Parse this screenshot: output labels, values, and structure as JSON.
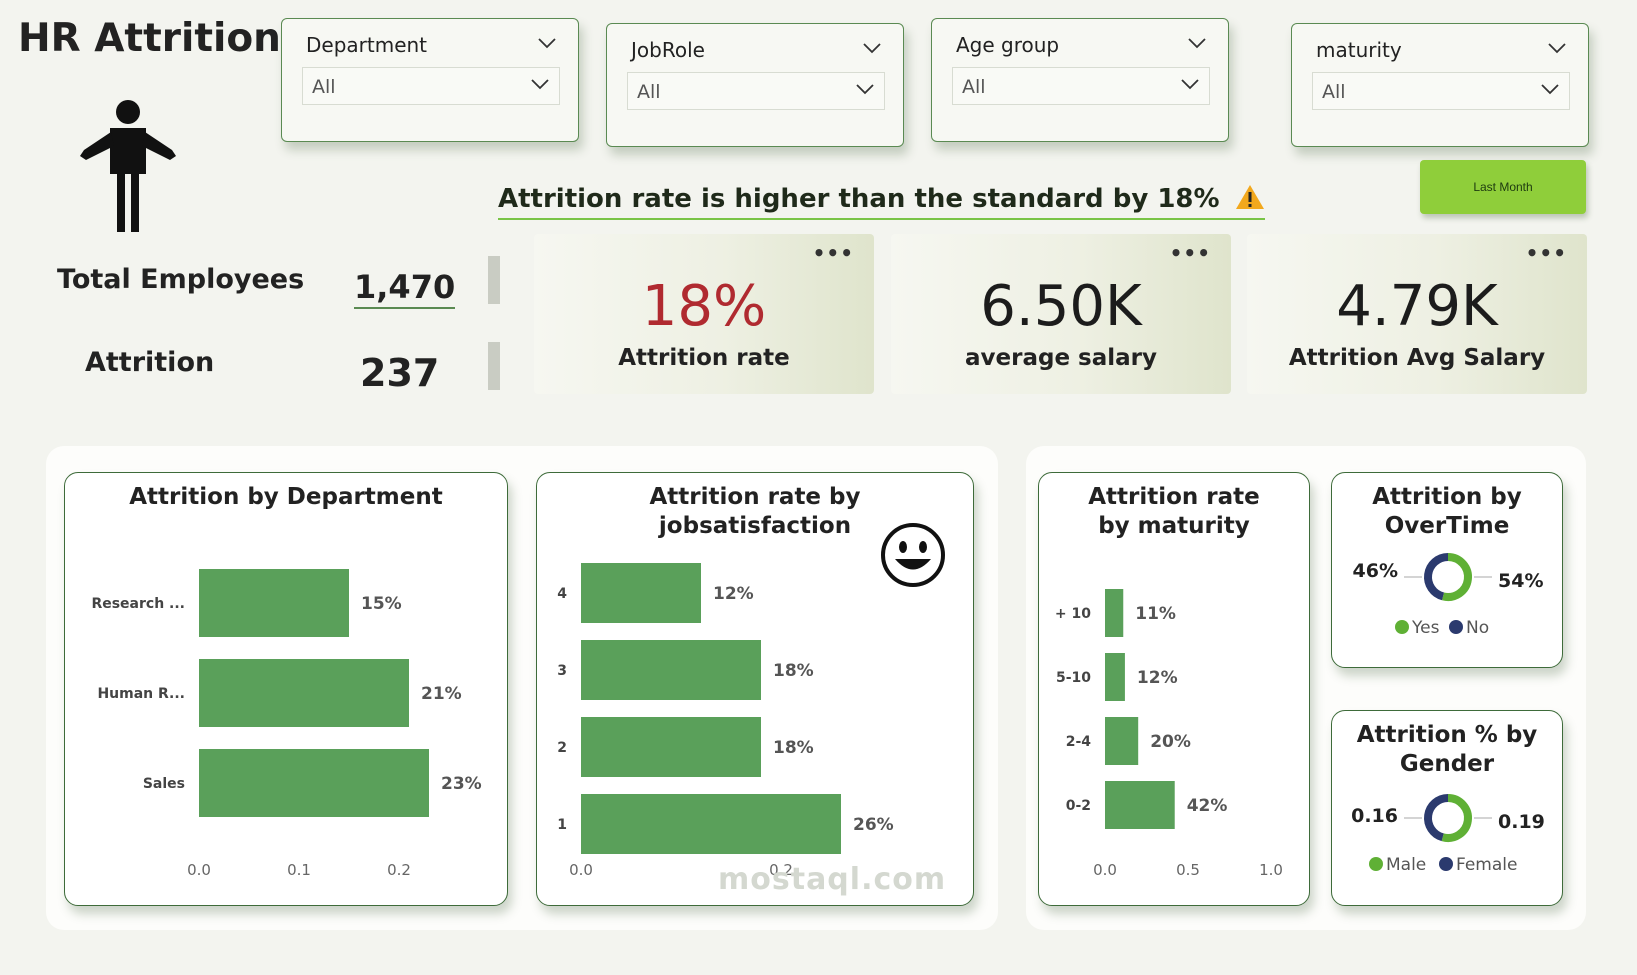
{
  "header": {
    "title": "HR Attrition"
  },
  "slicers": [
    {
      "label": "Department",
      "value": "All"
    },
    {
      "label": "JobRole",
      "value": "All"
    },
    {
      "label": "Age group",
      "value": "All"
    },
    {
      "label": "maturity",
      "value": "All"
    }
  ],
  "buttons": {
    "last_month": "Last Month"
  },
  "alert": {
    "text": "Attrition rate is higher than the standard by 18%",
    "icon": "warning-icon"
  },
  "stats": {
    "total_employees_label": "Total Employees",
    "total_employees_value": "1,470",
    "attrition_label": "Attrition",
    "attrition_value": "237"
  },
  "kpis": [
    {
      "value": "18%",
      "label": "Attrition rate",
      "color": "#b02a30"
    },
    {
      "value": "6.50K",
      "label": "average salary",
      "color": "#1c1c1c"
    },
    {
      "value": "4.79K",
      "label": "Attrition Avg Salary",
      "color": "#1c1c1c"
    }
  ],
  "colors": {
    "bar": "#5aa05a",
    "donut_yes": "#5fb035",
    "donut_no": "#2b3a6e"
  },
  "watermark": "mostaql.com",
  "chart_data": [
    {
      "type": "bar",
      "title": "Attrition by Department",
      "orientation": "horizontal",
      "categories": [
        "Research ...",
        "Human R...",
        "Sales"
      ],
      "values": [
        0.15,
        0.21,
        0.23
      ],
      "data_labels": [
        "15%",
        "21%",
        "23%"
      ],
      "xlim": [
        0,
        0.2
      ],
      "x_ticks": [
        "0.0",
        "0.1",
        "0.2"
      ]
    },
    {
      "type": "bar",
      "title": "Attrition rate by jobsatisfaction",
      "orientation": "horizontal",
      "categories": [
        "4",
        "3",
        "2",
        "1"
      ],
      "values": [
        0.12,
        0.18,
        0.18,
        0.26
      ],
      "data_labels": [
        "12%",
        "18%",
        "18%",
        "26%"
      ],
      "x_ticks": [
        "0.0",
        "0.2"
      ]
    },
    {
      "type": "bar",
      "title": "Attrition rate by maturity",
      "orientation": "horizontal",
      "categories": [
        "+ 10",
        "5-10",
        "2-4",
        "0-2"
      ],
      "values": [
        0.11,
        0.12,
        0.2,
        0.42
      ],
      "data_labels": [
        "11%",
        "12%",
        "20%",
        "42%"
      ],
      "x_ticks": [
        "0.0",
        "0.5",
        "1.0"
      ]
    },
    {
      "type": "pie",
      "title": "Attrition by OverTime",
      "categories": [
        "Yes",
        "No"
      ],
      "values": [
        0.54,
        0.46
      ],
      "data_labels": [
        "54%",
        "46%"
      ],
      "legend": [
        "Yes",
        "No"
      ]
    },
    {
      "type": "pie",
      "title": "Attrition % by Gender",
      "categories": [
        "Male",
        "Female"
      ],
      "values": [
        0.19,
        0.16
      ],
      "data_labels": [
        "0.19",
        "0.16"
      ],
      "legend": [
        "Male",
        "Female"
      ]
    }
  ]
}
